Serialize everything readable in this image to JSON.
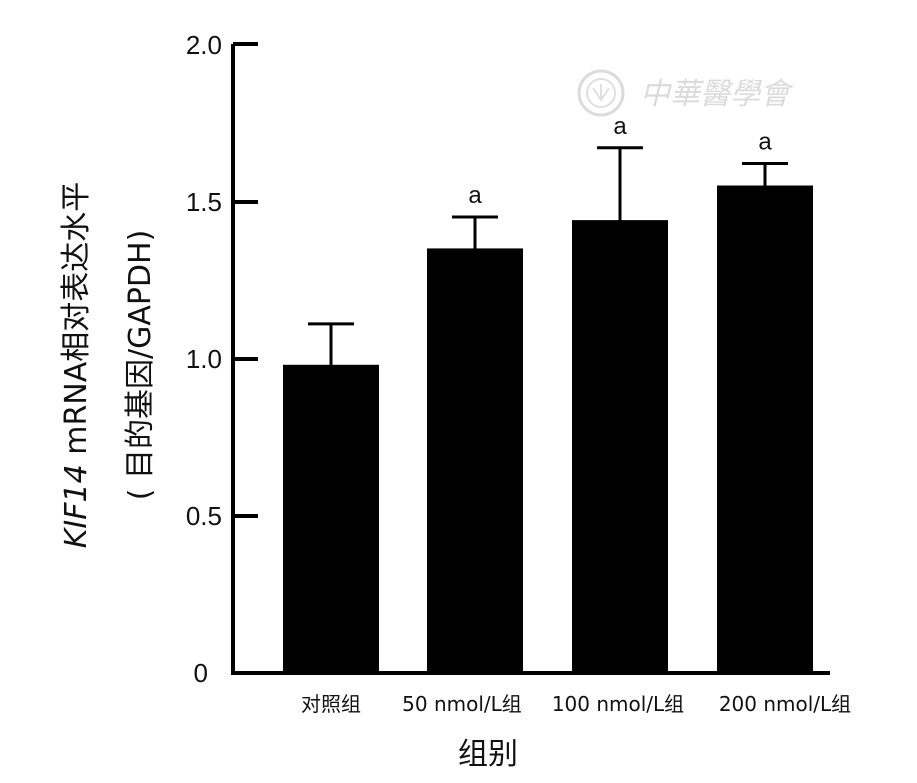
{
  "chart_data": {
    "type": "bar",
    "categories": [
      "对照组",
      "50 nmol/L组",
      "100 nmol/L组",
      "200 nmol/L组"
    ],
    "values": [
      0.98,
      1.35,
      1.44,
      1.55
    ],
    "errors": [
      0.13,
      0.1,
      0.23,
      0.07
    ],
    "significance": [
      "",
      "a",
      "a",
      "a"
    ],
    "xlabel": "组别",
    "ylabel_italic": "KIF14",
    "ylabel_rest": " mRNA相对表达水平",
    "ylabel_line2": "( 目的基因/GAPDH)",
    "yticks": [
      "0",
      "0.5",
      "1.0",
      "1.5",
      "2.0"
    ],
    "ylim": [
      0,
      2.0
    ],
    "bar_color": "#000000"
  },
  "watermark": {
    "text": "中華醫學會"
  }
}
